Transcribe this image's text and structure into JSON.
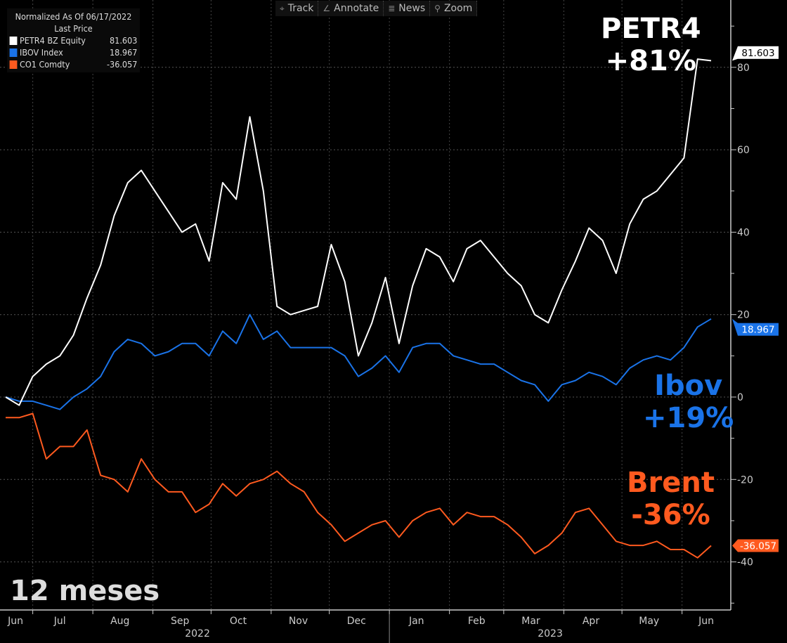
{
  "toolbar": {
    "items": [
      {
        "label": "Track",
        "icon": "crosshair-icon"
      },
      {
        "label": "Annotate",
        "icon": "pencil-icon"
      },
      {
        "label": "News",
        "icon": "news-icon"
      },
      {
        "label": "Zoom",
        "icon": "magnifier-icon"
      }
    ]
  },
  "legend": {
    "title": "Normalized As Of 06/17/2022",
    "subtitle": "Last Price",
    "items": [
      {
        "name": "PETR4 BZ Equity",
        "value": "81.603",
        "color": "#ffffff"
      },
      {
        "name": "IBOV Index",
        "value": "18.967",
        "color": "#1a73e8"
      },
      {
        "name": "CO1 Comdty",
        "value": "-36.057",
        "color": "#ff5a1f"
      }
    ]
  },
  "annotations": {
    "petr4": [
      "PETR4",
      "+81%"
    ],
    "ibov": [
      "Ibov",
      "+19%"
    ],
    "brent": [
      "Brent",
      "-36%"
    ],
    "period": "12 meses"
  },
  "chart_data": {
    "type": "line",
    "title": "",
    "xlabel": "",
    "ylabel": "",
    "ylim": [
      -50,
      95
    ],
    "yticks": [
      80,
      60,
      40,
      20,
      0,
      -20,
      -40
    ],
    "grid": true,
    "legend_placement": "top-left",
    "x_month_labels": [
      "Jun",
      "Jul",
      "Aug",
      "Sep",
      "Oct",
      "Nov",
      "Dec",
      "Jan",
      "Feb",
      "Mar",
      "Apr",
      "May",
      "Jun"
    ],
    "x_year_labels": [
      "2022",
      "2023"
    ],
    "x": [
      "2022-06-17",
      "2022-06-24",
      "2022-07-01",
      "2022-07-08",
      "2022-07-15",
      "2022-07-22",
      "2022-07-29",
      "2022-08-05",
      "2022-08-12",
      "2022-08-19",
      "2022-08-26",
      "2022-09-02",
      "2022-09-09",
      "2022-09-16",
      "2022-09-23",
      "2022-09-30",
      "2022-10-07",
      "2022-10-14",
      "2022-10-21",
      "2022-10-28",
      "2022-11-04",
      "2022-11-11",
      "2022-11-18",
      "2022-11-25",
      "2022-12-02",
      "2022-12-09",
      "2022-12-16",
      "2022-12-23",
      "2022-12-30",
      "2023-01-06",
      "2023-01-13",
      "2023-01-20",
      "2023-01-27",
      "2023-02-03",
      "2023-02-10",
      "2023-02-17",
      "2023-02-24",
      "2023-03-03",
      "2023-03-10",
      "2023-03-17",
      "2023-03-24",
      "2023-03-31",
      "2023-04-07",
      "2023-04-14",
      "2023-04-21",
      "2023-04-28",
      "2023-05-05",
      "2023-05-12",
      "2023-05-19",
      "2023-05-26",
      "2023-06-02",
      "2023-06-09",
      "2023-06-16"
    ],
    "series": [
      {
        "name": "PETR4 BZ Equity",
        "color": "#ffffff",
        "last": "81.603",
        "values": [
          0,
          -2,
          5,
          8,
          10,
          15,
          24,
          32,
          44,
          52,
          55,
          50,
          45,
          40,
          42,
          33,
          52,
          48,
          68,
          50,
          22,
          20,
          21,
          22,
          37,
          28,
          10,
          18,
          29,
          13,
          27,
          36,
          34,
          28,
          36,
          38,
          34,
          30,
          27,
          20,
          18,
          26,
          33,
          41,
          38,
          30,
          42,
          48,
          50,
          54,
          58,
          82,
          81.603
        ]
      },
      {
        "name": "IBOV Index",
        "color": "#1a73e8",
        "last": "18.967",
        "values": [
          0,
          -1,
          -1,
          -2,
          -3,
          0,
          2,
          5,
          11,
          14,
          13,
          10,
          11,
          13,
          13,
          10,
          16,
          13,
          20,
          14,
          16,
          12,
          12,
          12,
          12,
          10,
          5,
          7,
          10,
          6,
          12,
          13,
          13,
          10,
          9,
          8,
          8,
          6,
          4,
          3,
          -1,
          3,
          4,
          6,
          5,
          3,
          7,
          9,
          10,
          9,
          12,
          17,
          18.967
        ]
      },
      {
        "name": "CO1 Comdty",
        "color": "#ff5a1f",
        "last": "-36.057",
        "values": [
          -5,
          -5,
          -4,
          -15,
          -12,
          -12,
          -8,
          -19,
          -20,
          -23,
          -15,
          -20,
          -23,
          -23,
          -28,
          -26,
          -21,
          -24,
          -21,
          -20,
          -18,
          -21,
          -23,
          -28,
          -31,
          -35,
          -33,
          -31,
          -30,
          -34,
          -30,
          -28,
          -27,
          -31,
          -28,
          -29,
          -29,
          -31,
          -34,
          -38,
          -36,
          -33,
          -28,
          -27,
          -31,
          -35,
          -36,
          -36,
          -35,
          -37,
          -37,
          -39,
          -36.057
        ]
      }
    ]
  }
}
